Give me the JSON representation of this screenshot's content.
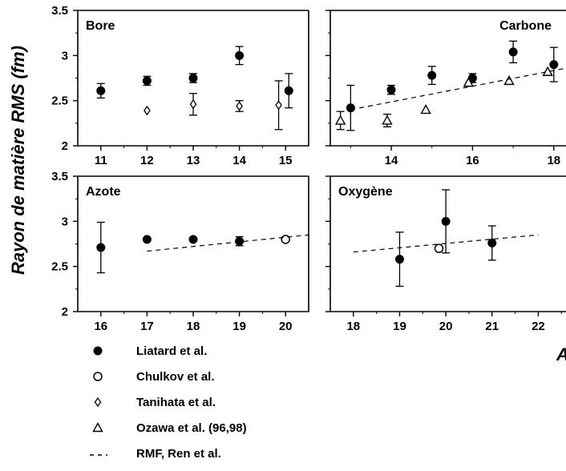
{
  "ylabel": "Rayon de matière RMS (fm)",
  "xlabel_fragment": "A",
  "legend": [
    {
      "marker": "filled-circle",
      "label": "Liatard et al."
    },
    {
      "marker": "open-circle",
      "label": "Chulkov et al."
    },
    {
      "marker": "open-diamond",
      "label": "Tanihata et al."
    },
    {
      "marker": "open-triangle",
      "label": "Ozawa et al. (96,98)"
    },
    {
      "marker": "dashed-line",
      "label": "RMF, Ren et al."
    }
  ],
  "chart_data": [
    {
      "type": "scatter",
      "title": "Bore",
      "xticks": [
        11,
        12,
        13,
        14,
        15
      ],
      "yticks": [
        2,
        2.5,
        3,
        3.5
      ],
      "xlim": [
        10.5,
        15.5
      ],
      "ylim": [
        2,
        3.5
      ],
      "series": [
        {
          "name": "Liatard et al.",
          "marker": "filled-circle",
          "x": [
            11,
            12,
            13,
            14,
            15.07
          ],
          "y": [
            2.61,
            2.72,
            2.75,
            3.0,
            2.61
          ],
          "err": [
            0.08,
            0.05,
            0.05,
            0.1,
            0.19
          ]
        },
        {
          "name": "Tanihata et al.",
          "marker": "open-diamond",
          "x": [
            12,
            13,
            14,
            14.85
          ],
          "y": [
            2.39,
            2.46,
            2.44,
            2.45
          ],
          "err": [
            0,
            0.12,
            0.06,
            0.27
          ]
        }
      ]
    },
    {
      "type": "scatter",
      "title": "Carbone",
      "xticks": [
        14,
        16,
        18
      ],
      "yticks": [
        2,
        2.5,
        3,
        3.5
      ],
      "xlim": [
        12.5,
        18.3
      ],
      "ylim": [
        2,
        3.5
      ],
      "series": [
        {
          "name": "Liatard et al.",
          "marker": "filled-circle",
          "x": [
            13,
            14,
            15,
            16,
            17,
            18
          ],
          "y": [
            2.42,
            2.62,
            2.78,
            2.75,
            3.04,
            2.9
          ],
          "err": [
            0.25,
            0.05,
            0.1,
            0.05,
            0.12,
            0.19
          ]
        },
        {
          "name": "Ozawa et al. (96,98)",
          "marker": "open-triangle",
          "x": [
            12.75,
            13.9,
            14.85,
            15.9,
            16.9,
            17.85
          ],
          "y": [
            2.28,
            2.28,
            2.4,
            2.7,
            2.72,
            2.82
          ],
          "err": [
            0.1,
            0.07,
            0,
            0,
            0,
            0
          ]
        },
        {
          "name": "RMF, Ren et al.",
          "marker": "dashed-line",
          "x": [
            13,
            18.3
          ],
          "y": [
            2.4,
            2.86
          ]
        }
      ]
    },
    {
      "type": "scatter",
      "title": "Azote",
      "xticks": [
        16,
        17,
        18,
        19,
        20
      ],
      "yticks": [
        2,
        2.5,
        3,
        3.5
      ],
      "xlim": [
        15.5,
        20.5
      ],
      "ylim": [
        2,
        3.5
      ],
      "series": [
        {
          "name": "Liatard et al.",
          "marker": "filled-circle",
          "x": [
            16,
            17,
            18,
            19
          ],
          "y": [
            2.71,
            2.8,
            2.8,
            2.78
          ],
          "err": [
            0.28,
            0,
            0,
            0.05
          ]
        },
        {
          "name": "Chulkov et al.",
          "marker": "open-circle",
          "x": [
            20
          ],
          "y": [
            2.8
          ],
          "err": [
            0
          ]
        },
        {
          "name": "RMF, Ren et al.",
          "marker": "dashed-line",
          "x": [
            17,
            20.5
          ],
          "y": [
            2.67,
            2.85
          ]
        }
      ]
    },
    {
      "type": "scatter",
      "title": "Oxygène",
      "xticks": [
        18,
        19,
        20,
        21,
        22
      ],
      "yticks": [
        2,
        2.5,
        3,
        3.5
      ],
      "xlim": [
        17.5,
        22.6
      ],
      "ylim": [
        2,
        3.5
      ],
      "series": [
        {
          "name": "Liatard et al.",
          "marker": "filled-circle",
          "x": [
            19,
            20,
            21
          ],
          "y": [
            2.58,
            3.0,
            2.76
          ],
          "err": [
            0.3,
            0.35,
            0.19
          ]
        },
        {
          "name": "Chulkov et al.",
          "marker": "open-circle",
          "x": [
            19.85
          ],
          "y": [
            2.7
          ],
          "err": [
            0
          ]
        },
        {
          "name": "RMF, Ren et al.",
          "marker": "dashed-line",
          "x": [
            18,
            22
          ],
          "y": [
            2.66,
            2.85
          ]
        }
      ]
    }
  ]
}
